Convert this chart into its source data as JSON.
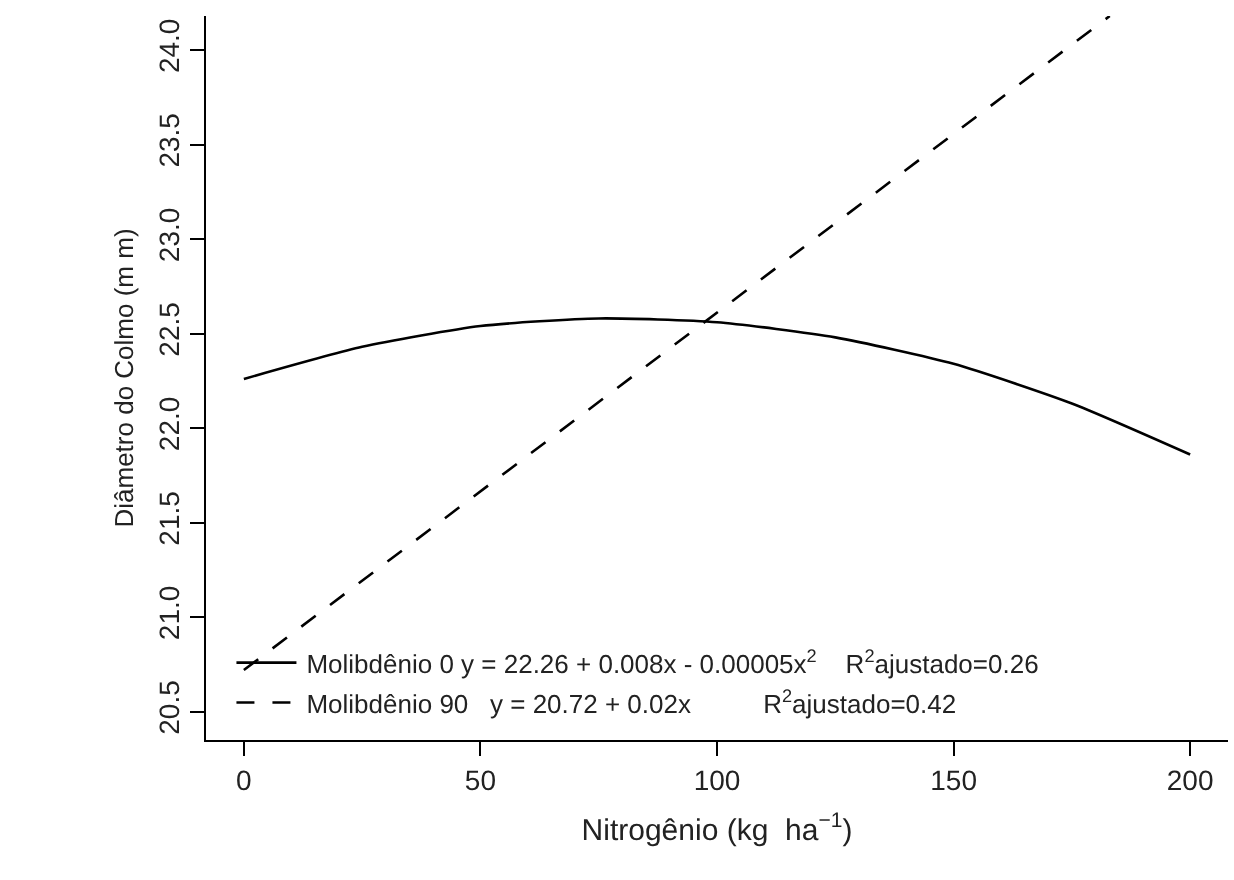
{
  "chart_data": {
    "type": "line",
    "xlabel": "Nitrogênio (kg  ha$^{−1}$)",
    "ylabel": "Diâmetro do Colmo (m m)",
    "xlim": [
      -8,
      208
    ],
    "xticks": [
      0,
      50,
      100,
      150,
      200
    ],
    "ylim": [
      20.35,
      24.18
    ],
    "yticks": [
      {
        "value": 20.5,
        "label": "20.5"
      },
      {
        "value": 21,
        "label": "21.0"
      },
      {
        "value": 21.5,
        "label": "21.5"
      },
      {
        "value": 22,
        "label": "22.0"
      },
      {
        "value": 22.5,
        "label": "22.5"
      },
      {
        "value": 23,
        "label": "23.0"
      },
      {
        "value": 23.5,
        "label": "23.5"
      },
      {
        "value": 24,
        "label": "24.0"
      }
    ],
    "legend": "bottom left",
    "marker": "none",
    "series": [
      {
        "name": "Molibdênio 0 y = 22.26 + 0.008x - 0.00005x$^{2}$    R$^{2}$ajustado=0.26",
        "color": "#000000",
        "line_style": "solid",
        "x": [
          0,
          25,
          50,
          75,
          100,
          125,
          150,
          175,
          200
        ],
        "values": [
          22.26,
          22.43,
          22.54,
          22.58,
          22.56,
          22.48,
          22.34,
          22.13,
          21.86
        ]
      },
      {
        "name": "Molibdênio 90   y = 20.72 + 0.02x          R$^{2}$ajustado=0.42",
        "color": "#000000",
        "line_style": "dashed",
        "x": [
          0,
          183
        ],
        "values": [
          20.72,
          24.18
        ]
      }
    ]
  }
}
